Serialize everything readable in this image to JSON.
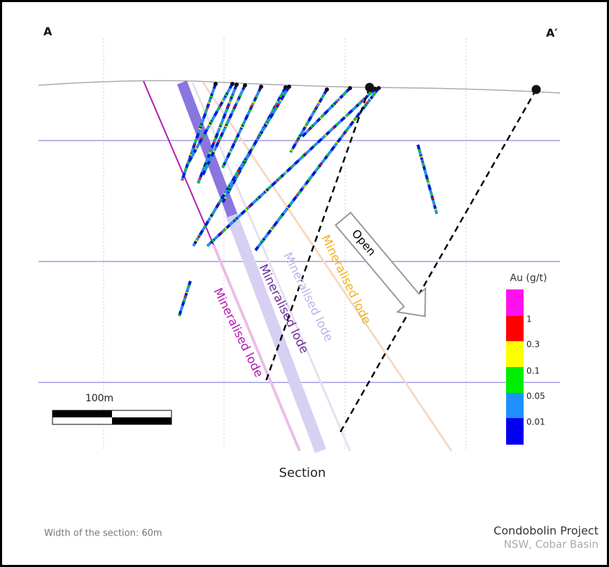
{
  "section_ends": {
    "left": "A",
    "right": "A′"
  },
  "lodes": [
    "Mineralised lode",
    "Mineralised lode",
    "Mineralised lode",
    "Mineralised lode"
  ],
  "open_label": "Open",
  "scale_bar": {
    "label": "100m"
  },
  "caption": "Section",
  "legend": {
    "title": "Au (g/t)",
    "labels": [
      "1",
      "0.3",
      "0.1",
      "0.05",
      "0.01"
    ]
  },
  "footer": {
    "width_note": "Width of the section: 60m",
    "project": "Condobolin Project",
    "location": "NSW, Cobar Basin"
  }
}
